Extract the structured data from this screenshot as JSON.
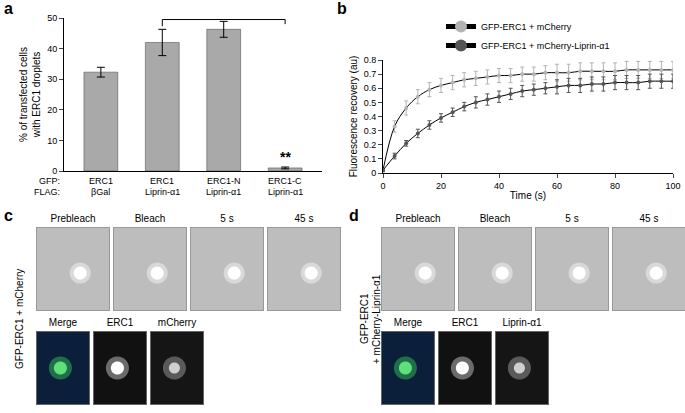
{
  "chart_data": [
    {
      "type": "bar",
      "panel_label": "a",
      "y_label": [
        "% of transfected cells",
        "with ERC1 droplets"
      ],
      "row_labels": [
        "GFP:",
        "FLAG:"
      ],
      "categories": [
        "ERC1",
        "ERC1",
        "ERC1-N",
        "ERC1-C"
      ],
      "categories_row2": [
        "βGal",
        "Liprin-α1",
        "Liprin-α1",
        "Liprin-α1"
      ],
      "values": [
        32.3,
        42,
        46.3,
        1
      ],
      "errors": [
        1.6,
        4.3,
        2.6,
        0.3
      ],
      "color": "#a9a9a9",
      "ylim": [
        0,
        50
      ],
      "yticks": [
        0,
        10,
        20,
        30,
        40,
        50
      ],
      "significance": {
        "from": 1,
        "to": 3,
        "label": "**"
      },
      "grid": false
    },
    {
      "type": "line",
      "panel_label": "b",
      "x_label": "Time (s)",
      "y_label": "Fluorescence recovery (au)",
      "x": [
        0,
        4,
        8,
        12,
        16,
        20,
        24,
        28,
        32,
        36,
        40,
        44,
        48,
        52,
        56,
        60,
        64,
        68,
        72,
        76,
        80,
        84,
        88,
        92,
        96,
        100
      ],
      "series": [
        {
          "name": "GFP-ERC1 + mCherry",
          "color": "#b3b3b3",
          "values": [
            0.02,
            0.33,
            0.46,
            0.54,
            0.59,
            0.62,
            0.64,
            0.66,
            0.67,
            0.68,
            0.69,
            0.69,
            0.7,
            0.7,
            0.71,
            0.71,
            0.71,
            0.72,
            0.72,
            0.72,
            0.72,
            0.73,
            0.73,
            0.73,
            0.73,
            0.73
          ],
          "errors": [
            0.01,
            0.04,
            0.05,
            0.05,
            0.05,
            0.05,
            0.05,
            0.05,
            0.05,
            0.05,
            0.05,
            0.05,
            0.05,
            0.05,
            0.05,
            0.06,
            0.06,
            0.06,
            0.06,
            0.06,
            0.06,
            0.06,
            0.06,
            0.06,
            0.06,
            0.06
          ]
        },
        {
          "name": "GFP-ERC1 + mCherry-Liprin-α1",
          "color": "#555555",
          "values": [
            0.02,
            0.12,
            0.21,
            0.28,
            0.34,
            0.39,
            0.43,
            0.47,
            0.5,
            0.52,
            0.54,
            0.56,
            0.58,
            0.59,
            0.6,
            0.61,
            0.62,
            0.62,
            0.63,
            0.63,
            0.64,
            0.64,
            0.64,
            0.65,
            0.65,
            0.65
          ],
          "errors": [
            0.01,
            0.02,
            0.02,
            0.03,
            0.03,
            0.03,
            0.03,
            0.03,
            0.04,
            0.04,
            0.04,
            0.04,
            0.04,
            0.04,
            0.04,
            0.05,
            0.05,
            0.05,
            0.05,
            0.05,
            0.05,
            0.05,
            0.05,
            0.05,
            0.05,
            0.05
          ]
        }
      ],
      "xlim": [
        0,
        100
      ],
      "xticks": [
        0,
        20,
        40,
        60,
        80,
        100
      ],
      "ylim": [
        0,
        0.8
      ],
      "yticks": [
        0,
        0.1,
        0.2,
        0.3,
        0.4,
        0.5,
        0.6,
        0.7,
        0.8
      ],
      "legend": "top",
      "grid": false
    }
  ],
  "image_panels": [
    {
      "panel_label": "c",
      "side_label": [
        "GFP-ERC1 + mCherry"
      ],
      "frames": [
        "Prebleach",
        "Bleach",
        "5 s",
        "45 s"
      ],
      "insets": [
        "Merge",
        "ERC1",
        "mCherry"
      ]
    },
    {
      "panel_label": "d",
      "side_label": [
        "GFP-ERC1",
        "+ mCherry-Liprin-α1"
      ],
      "frames": [
        "Prebleach",
        "Bleach",
        "5 s",
        "45 s"
      ],
      "insets": [
        "Merge",
        "ERC1",
        "Liprin-α1"
      ]
    }
  ]
}
